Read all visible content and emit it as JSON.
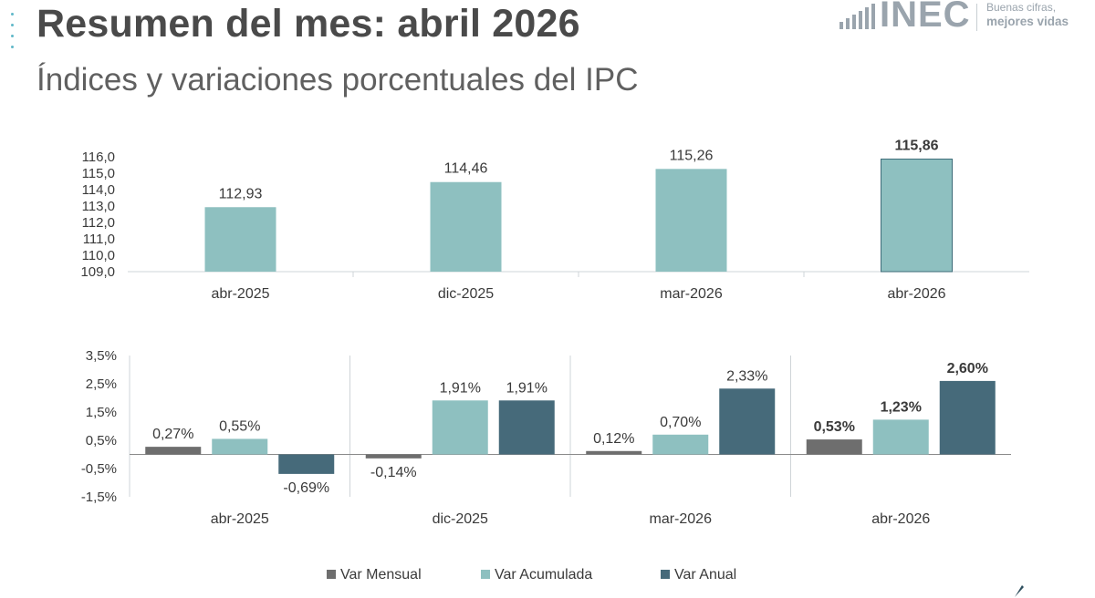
{
  "header": {
    "title": "Resumen del mes: abril 2026",
    "subtitle": "Índices y variaciones porcentuales del IPC"
  },
  "logo": {
    "text": "INEC",
    "tagline_1": "Buenas cifras,",
    "tagline_2": "mejores vidas"
  },
  "colors": {
    "index_bar": "#8ec0c0",
    "index_bar_highlight_border": "#3d6b78",
    "var_mensual": "#6e6e6e",
    "var_acumulada": "#8ec0c0",
    "var_anual": "#466a7a",
    "gridline": "#cfd4d8",
    "text": "#3a3a3a"
  },
  "chart_data": [
    {
      "type": "bar",
      "categories": [
        "abr-2025",
        "dic-2025",
        "mar-2026",
        "abr-2026"
      ],
      "values": [
        112.93,
        114.46,
        115.26,
        115.86
      ],
      "labels": [
        "112,93",
        "114,46",
        "115,26",
        "115,86"
      ],
      "ylim": [
        109,
        116
      ],
      "yticks": [
        "109,0",
        "110,0",
        "111,0",
        "112,0",
        "113,0",
        "114,0",
        "115,0",
        "116,0"
      ],
      "highlight_last": true
    },
    {
      "type": "bar",
      "categories": [
        "abr-2025",
        "dic-2025",
        "mar-2026",
        "abr-2026"
      ],
      "ylim": [
        -1.5,
        3.5
      ],
      "yticks": [
        "-1,5%",
        "-0,5%",
        "0,5%",
        "1,5%",
        "2,5%",
        "3,5%"
      ],
      "series": [
        {
          "name": "Var Mensual",
          "values": [
            0.27,
            -0.14,
            0.12,
            0.53
          ],
          "labels": [
            "0,27%",
            "-0,14%",
            "0,12%",
            "0,53%"
          ]
        },
        {
          "name": "Var Acumulada",
          "values": [
            0.55,
            1.91,
            0.7,
            1.23
          ],
          "labels": [
            "0,55%",
            "1,91%",
            "0,70%",
            "1,23%"
          ]
        },
        {
          "name": "Var Anual",
          "values": [
            -0.69,
            1.91,
            2.33,
            2.6
          ],
          "labels": [
            "-0,69%",
            "1,91%",
            "2,33%",
            "2,60%"
          ]
        }
      ],
      "legend_position": "bottom",
      "highlight_last": true
    }
  ]
}
